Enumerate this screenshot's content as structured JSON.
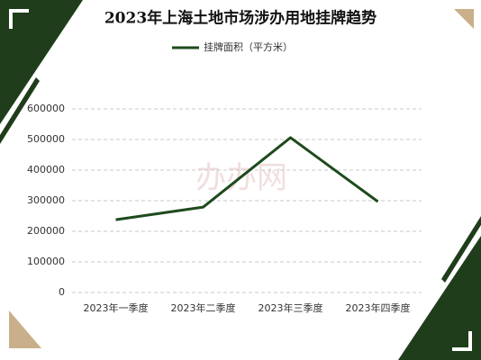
{
  "chart_data": {
    "type": "line",
    "title": "2023年上海土地市场涉办用地挂牌趋势",
    "watermark": "办办网",
    "categories": [
      "2023年一季度",
      "2023年二季度",
      "2023年三季度",
      "2023年四季度"
    ],
    "series": [
      {
        "name": "挂牌面积（平方米）",
        "color": "#1e4a1c",
        "values": [
          238000,
          279000,
          506000,
          297000
        ]
      }
    ],
    "ylim": [
      0,
      600000
    ],
    "yticks": [
      0,
      100000,
      200000,
      300000,
      400000,
      500000,
      600000
    ],
    "grid": true,
    "legend": "top"
  }
}
